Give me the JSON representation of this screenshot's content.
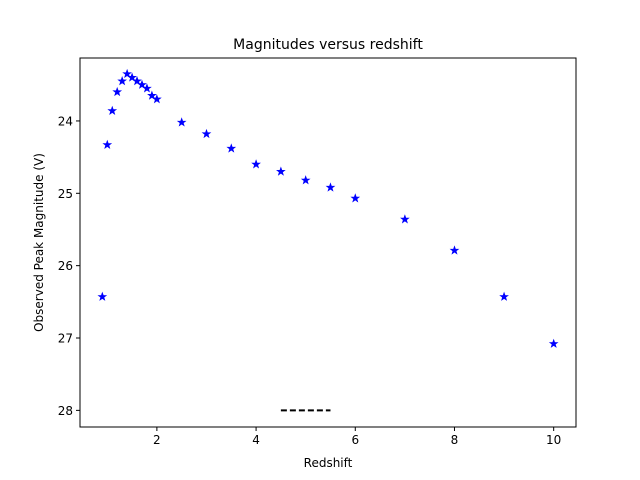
{
  "chart_data": {
    "type": "scatter",
    "title": "Magnitudes versus redshift",
    "xlabel": "Redshift",
    "ylabel": "Observed Peak Magnitude (V)",
    "xlim": [
      0.45,
      10.45
    ],
    "ylim": [
      28.23,
      23.13
    ],
    "y_inverted": true,
    "x_ticks": [
      2,
      4,
      6,
      8,
      10
    ],
    "y_ticks": [
      24,
      25,
      26,
      27,
      28
    ],
    "grid": false,
    "series": [
      {
        "marker": "star",
        "color": "#0000ff",
        "x": [
          0.9,
          1.0,
          1.1,
          1.2,
          1.3,
          1.4,
          1.5,
          1.6,
          1.7,
          1.8,
          1.9,
          2.0,
          2.5,
          3.0,
          3.5,
          4.0,
          4.5,
          5.0,
          5.5,
          6.0,
          7.0,
          8.0,
          9.0,
          10.0
        ],
        "y": [
          26.43,
          24.33,
          23.86,
          23.6,
          23.45,
          23.35,
          23.4,
          23.45,
          23.5,
          23.55,
          23.65,
          23.7,
          24.02,
          24.18,
          24.38,
          24.6,
          24.7,
          24.82,
          24.92,
          25.07,
          25.36,
          25.79,
          26.43,
          27.08
        ]
      }
    ],
    "annotations": [
      {
        "type": "dashed-line",
        "color": "#000000",
        "x": [
          4.5,
          5.5
        ],
        "y": [
          28.0,
          28.0
        ]
      }
    ]
  }
}
